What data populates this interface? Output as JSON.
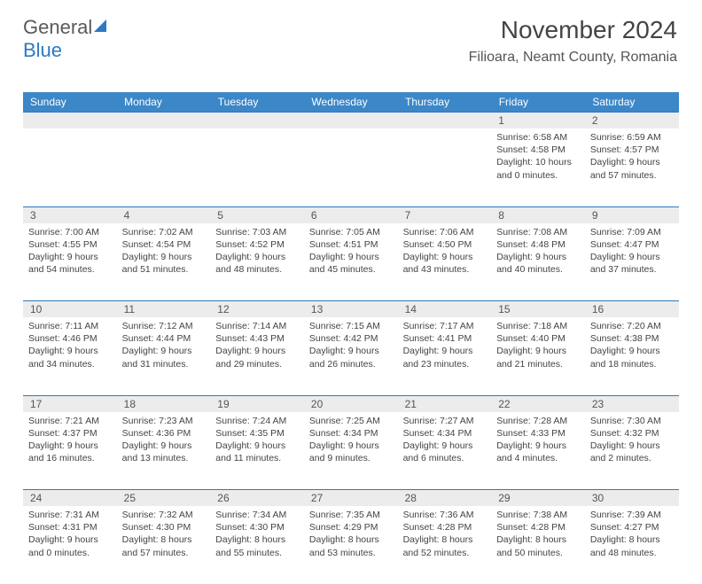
{
  "logo": {
    "line1": "General",
    "line2": "Blue"
  },
  "header": {
    "title": "November 2024",
    "location": "Filioara, Neamt County, Romania"
  },
  "styling": {
    "header_bg": "#3b87c8",
    "header_text": "#ffffff",
    "daynum_bg": "#ececec",
    "border_color": "#2d79c2",
    "body_text": "#444444",
    "page_bg": "#ffffff",
    "title_fontsize": 28,
    "loc_fontsize": 16,
    "dayhead_fontsize": 12,
    "cell_fontsize": 10.5
  },
  "dayHeaders": [
    "Sunday",
    "Monday",
    "Tuesday",
    "Wednesday",
    "Thursday",
    "Friday",
    "Saturday"
  ],
  "weeks": [
    [
      {
        "n": "",
        "sr": "",
        "ss": "",
        "dl": ""
      },
      {
        "n": "",
        "sr": "",
        "ss": "",
        "dl": ""
      },
      {
        "n": "",
        "sr": "",
        "ss": "",
        "dl": ""
      },
      {
        "n": "",
        "sr": "",
        "ss": "",
        "dl": ""
      },
      {
        "n": "",
        "sr": "",
        "ss": "",
        "dl": ""
      },
      {
        "n": "1",
        "sr": "Sunrise: 6:58 AM",
        "ss": "Sunset: 4:58 PM",
        "dl": "Daylight: 10 hours and 0 minutes."
      },
      {
        "n": "2",
        "sr": "Sunrise: 6:59 AM",
        "ss": "Sunset: 4:57 PM",
        "dl": "Daylight: 9 hours and 57 minutes."
      }
    ],
    [
      {
        "n": "3",
        "sr": "Sunrise: 7:00 AM",
        "ss": "Sunset: 4:55 PM",
        "dl": "Daylight: 9 hours and 54 minutes."
      },
      {
        "n": "4",
        "sr": "Sunrise: 7:02 AM",
        "ss": "Sunset: 4:54 PM",
        "dl": "Daylight: 9 hours and 51 minutes."
      },
      {
        "n": "5",
        "sr": "Sunrise: 7:03 AM",
        "ss": "Sunset: 4:52 PM",
        "dl": "Daylight: 9 hours and 48 minutes."
      },
      {
        "n": "6",
        "sr": "Sunrise: 7:05 AM",
        "ss": "Sunset: 4:51 PM",
        "dl": "Daylight: 9 hours and 45 minutes."
      },
      {
        "n": "7",
        "sr": "Sunrise: 7:06 AM",
        "ss": "Sunset: 4:50 PM",
        "dl": "Daylight: 9 hours and 43 minutes."
      },
      {
        "n": "8",
        "sr": "Sunrise: 7:08 AM",
        "ss": "Sunset: 4:48 PM",
        "dl": "Daylight: 9 hours and 40 minutes."
      },
      {
        "n": "9",
        "sr": "Sunrise: 7:09 AM",
        "ss": "Sunset: 4:47 PM",
        "dl": "Daylight: 9 hours and 37 minutes."
      }
    ],
    [
      {
        "n": "10",
        "sr": "Sunrise: 7:11 AM",
        "ss": "Sunset: 4:46 PM",
        "dl": "Daylight: 9 hours and 34 minutes."
      },
      {
        "n": "11",
        "sr": "Sunrise: 7:12 AM",
        "ss": "Sunset: 4:44 PM",
        "dl": "Daylight: 9 hours and 31 minutes."
      },
      {
        "n": "12",
        "sr": "Sunrise: 7:14 AM",
        "ss": "Sunset: 4:43 PM",
        "dl": "Daylight: 9 hours and 29 minutes."
      },
      {
        "n": "13",
        "sr": "Sunrise: 7:15 AM",
        "ss": "Sunset: 4:42 PM",
        "dl": "Daylight: 9 hours and 26 minutes."
      },
      {
        "n": "14",
        "sr": "Sunrise: 7:17 AM",
        "ss": "Sunset: 4:41 PM",
        "dl": "Daylight: 9 hours and 23 minutes."
      },
      {
        "n": "15",
        "sr": "Sunrise: 7:18 AM",
        "ss": "Sunset: 4:40 PM",
        "dl": "Daylight: 9 hours and 21 minutes."
      },
      {
        "n": "16",
        "sr": "Sunrise: 7:20 AM",
        "ss": "Sunset: 4:38 PM",
        "dl": "Daylight: 9 hours and 18 minutes."
      }
    ],
    [
      {
        "n": "17",
        "sr": "Sunrise: 7:21 AM",
        "ss": "Sunset: 4:37 PM",
        "dl": "Daylight: 9 hours and 16 minutes."
      },
      {
        "n": "18",
        "sr": "Sunrise: 7:23 AM",
        "ss": "Sunset: 4:36 PM",
        "dl": "Daylight: 9 hours and 13 minutes."
      },
      {
        "n": "19",
        "sr": "Sunrise: 7:24 AM",
        "ss": "Sunset: 4:35 PM",
        "dl": "Daylight: 9 hours and 11 minutes."
      },
      {
        "n": "20",
        "sr": "Sunrise: 7:25 AM",
        "ss": "Sunset: 4:34 PM",
        "dl": "Daylight: 9 hours and 9 minutes."
      },
      {
        "n": "21",
        "sr": "Sunrise: 7:27 AM",
        "ss": "Sunset: 4:34 PM",
        "dl": "Daylight: 9 hours and 6 minutes."
      },
      {
        "n": "22",
        "sr": "Sunrise: 7:28 AM",
        "ss": "Sunset: 4:33 PM",
        "dl": "Daylight: 9 hours and 4 minutes."
      },
      {
        "n": "23",
        "sr": "Sunrise: 7:30 AM",
        "ss": "Sunset: 4:32 PM",
        "dl": "Daylight: 9 hours and 2 minutes."
      }
    ],
    [
      {
        "n": "24",
        "sr": "Sunrise: 7:31 AM",
        "ss": "Sunset: 4:31 PM",
        "dl": "Daylight: 9 hours and 0 minutes."
      },
      {
        "n": "25",
        "sr": "Sunrise: 7:32 AM",
        "ss": "Sunset: 4:30 PM",
        "dl": "Daylight: 8 hours and 57 minutes."
      },
      {
        "n": "26",
        "sr": "Sunrise: 7:34 AM",
        "ss": "Sunset: 4:30 PM",
        "dl": "Daylight: 8 hours and 55 minutes."
      },
      {
        "n": "27",
        "sr": "Sunrise: 7:35 AM",
        "ss": "Sunset: 4:29 PM",
        "dl": "Daylight: 8 hours and 53 minutes."
      },
      {
        "n": "28",
        "sr": "Sunrise: 7:36 AM",
        "ss": "Sunset: 4:28 PM",
        "dl": "Daylight: 8 hours and 52 minutes."
      },
      {
        "n": "29",
        "sr": "Sunrise: 7:38 AM",
        "ss": "Sunset: 4:28 PM",
        "dl": "Daylight: 8 hours and 50 minutes."
      },
      {
        "n": "30",
        "sr": "Sunrise: 7:39 AM",
        "ss": "Sunset: 4:27 PM",
        "dl": "Daylight: 8 hours and 48 minutes."
      }
    ]
  ]
}
